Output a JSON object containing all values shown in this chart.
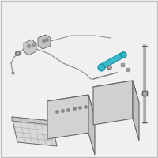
{
  "bg_color": "#f0f0f0",
  "border_color": "#cccccc",
  "stopper_color": "#3ab8cc",
  "line_color": "#888888",
  "dark_color": "#555555",
  "edge_color": "#666666",
  "face_top": "#e8e8e8",
  "face_front": "#d5d5d5",
  "face_right": "#c8c8c8",
  "tray_face": "#d0d0d0",
  "tray_grid": "#aaaaaa"
}
